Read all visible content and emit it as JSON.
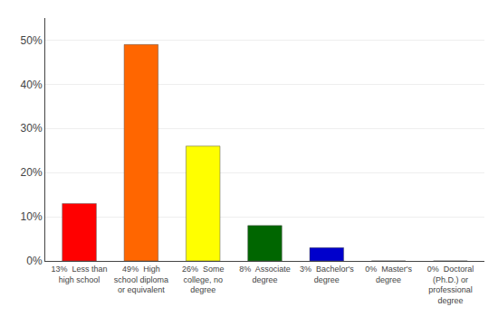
{
  "chart_data": {
    "type": "bar",
    "categories": [
      "13%  Less than\nhigh school",
      "49%  High\nschool diploma\nor equivalent",
      "26%  Some\ncollege, no\ndegree",
      "8%  Associate\ndegree",
      "3%  Bachelor's\ndegree",
      "0%  Master's\ndegree",
      "0%  Doctoral\n(Ph.D.) or\nprofessional\ndegree"
    ],
    "values": [
      13,
      49,
      26,
      8,
      3,
      0,
      0
    ],
    "colors": [
      "#ff0000",
      "#ff6600",
      "#ffff00",
      "#006600",
      "#0000cc",
      "#8800cc",
      "#ff44ff"
    ],
    "ylim": [
      0,
      55
    ],
    "yticks": [
      {
        "value": 0,
        "label": "0%"
      },
      {
        "value": 10,
        "label": "10%"
      },
      {
        "value": 20,
        "label": "20%"
      },
      {
        "value": 30,
        "label": "30%"
      },
      {
        "value": 40,
        "label": "40%"
      },
      {
        "value": 50,
        "label": "50%"
      }
    ],
    "grid": true
  }
}
